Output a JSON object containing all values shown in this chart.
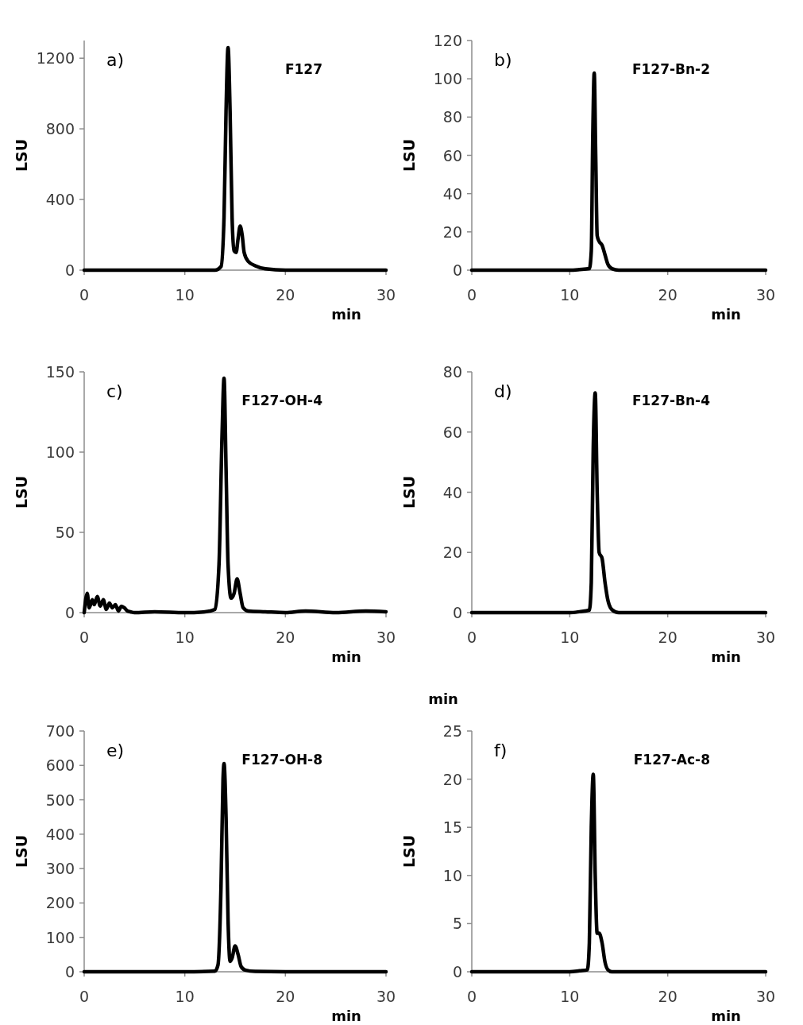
{
  "chart_data": [
    {
      "type": "line",
      "title": "a)",
      "subtitle": "F127",
      "xlabel": "min",
      "ylabel": "LSU",
      "color": "#000000",
      "xlim": [
        0,
        30
      ],
      "ylim": [
        0,
        1300
      ],
      "xticks": [
        0,
        10,
        20,
        30
      ],
      "yticks": [
        0,
        400,
        800,
        1200
      ],
      "x": [
        0,
        5,
        10,
        13,
        13.6,
        13.9,
        14.1,
        14.3,
        14.5,
        14.7,
        14.9,
        15.1,
        15.3,
        15.5,
        15.7,
        15.9,
        16.3,
        17,
        18,
        20,
        25,
        30
      ],
      "values": [
        0,
        0,
        0,
        0,
        20,
        300,
        900,
        1260,
        900,
        300,
        110,
        100,
        180,
        250,
        200,
        100,
        50,
        25,
        8,
        0,
        0,
        0
      ]
    },
    {
      "type": "line",
      "title": "b)",
      "subtitle": "F127-Bn-2",
      "xlabel": "min",
      "ylabel": "LSU",
      "color": "#000000",
      "xlim": [
        0,
        30
      ],
      "ylim": [
        0,
        120
      ],
      "xticks": [
        0,
        10,
        20,
        30
      ],
      "yticks": [
        0,
        20,
        40,
        60,
        80,
        100,
        120
      ],
      "x": [
        0,
        5,
        10,
        11,
        12,
        12.2,
        12.35,
        12.5,
        12.65,
        12.8,
        13,
        13.3,
        13.6,
        13.9,
        14.3,
        15,
        20,
        30
      ],
      "values": [
        0,
        0,
        0,
        0.3,
        0.8,
        10,
        70,
        103,
        60,
        18,
        15,
        13,
        8,
        3,
        0.8,
        0,
        0,
        0
      ]
    },
    {
      "type": "line",
      "title": "c)",
      "subtitle": "F127-OH-4",
      "xlabel": "min",
      "ylabel": "LSU",
      "color": "#000000",
      "xlim": [
        0,
        30
      ],
      "ylim": [
        0,
        150
      ],
      "xticks": [
        0,
        10,
        20,
        30
      ],
      "yticks": [
        0,
        50,
        100,
        150
      ],
      "x": [
        0,
        0.3,
        0.5,
        0.8,
        1,
        1.3,
        1.6,
        1.9,
        2.2,
        2.5,
        2.8,
        3.1,
        3.4,
        3.7,
        4,
        4.3,
        4.6,
        5,
        7,
        10,
        12,
        13,
        13.4,
        13.7,
        13.9,
        14.1,
        14.3,
        14.6,
        14.9,
        15.2,
        15.5,
        15.8,
        16.3,
        18,
        20,
        22,
        25,
        28,
        30
      ],
      "values": [
        0,
        12,
        3,
        8,
        5,
        10,
        4,
        8,
        2,
        6,
        3,
        5,
        1,
        4,
        3,
        1,
        0.5,
        0,
        0.5,
        0,
        0.5,
        2,
        30,
        110,
        146,
        90,
        30,
        9,
        12,
        21,
        12,
        3,
        1,
        0.5,
        0,
        1,
        0,
        1,
        0.5
      ]
    },
    {
      "type": "line",
      "title": "d)",
      "subtitle": "F127-Bn-4",
      "xlabel": "min",
      "ylabel": "LSU",
      "color": "#000000",
      "xlim": [
        0,
        30
      ],
      "ylim": [
        0,
        80
      ],
      "xticks": [
        0,
        10,
        20,
        30
      ],
      "yticks": [
        0,
        20,
        40,
        60,
        80
      ],
      "annotations": [
        "min"
      ],
      "x": [
        0,
        5,
        10,
        11,
        12,
        12.2,
        12.4,
        12.6,
        12.8,
        13,
        13.3,
        13.6,
        13.9,
        14.3,
        15,
        20,
        30
      ],
      "values": [
        0,
        0,
        0,
        0.3,
        0.8,
        10,
        55,
        73,
        40,
        20,
        18,
        10,
        4,
        1,
        0,
        0,
        0
      ]
    },
    {
      "type": "line",
      "title": "e)",
      "subtitle": "F127-OH-8",
      "xlabel": "min",
      "ylabel": "LSU",
      "color": "#000000",
      "xlim": [
        0,
        30
      ],
      "ylim": [
        0,
        700
      ],
      "xticks": [
        0,
        10,
        20,
        30
      ],
      "yticks": [
        0,
        100,
        200,
        300,
        400,
        500,
        600,
        700
      ],
      "x": [
        0,
        5,
        10,
        13,
        13.3,
        13.6,
        13.8,
        13.9,
        14.1,
        14.3,
        14.5,
        14.7,
        15,
        15.3,
        15.6,
        16,
        17,
        20,
        25,
        30
      ],
      "values": [
        0,
        0,
        0,
        2,
        20,
        250,
        560,
        605,
        450,
        150,
        30,
        40,
        75,
        50,
        15,
        5,
        1,
        0,
        0,
        0
      ]
    },
    {
      "type": "line",
      "title": "f)",
      "subtitle": "F127-Ac-8",
      "xlabel": "min",
      "ylabel": "LSU",
      "color": "#000000",
      "xlim": [
        0,
        30
      ],
      "ylim": [
        0,
        25
      ],
      "xticks": [
        0,
        10,
        20,
        30
      ],
      "yticks": [
        0,
        5,
        10,
        15,
        20,
        25
      ],
      "x": [
        0,
        5,
        10,
        11,
        11.8,
        12,
        12.2,
        12.4,
        12.6,
        12.8,
        13,
        13.3,
        13.6,
        13.9,
        14.3,
        20,
        30
      ],
      "values": [
        0,
        0,
        0,
        0.1,
        0.2,
        3,
        15,
        20.5,
        10,
        4,
        4,
        3,
        1,
        0.2,
        0,
        0,
        0
      ]
    }
  ]
}
